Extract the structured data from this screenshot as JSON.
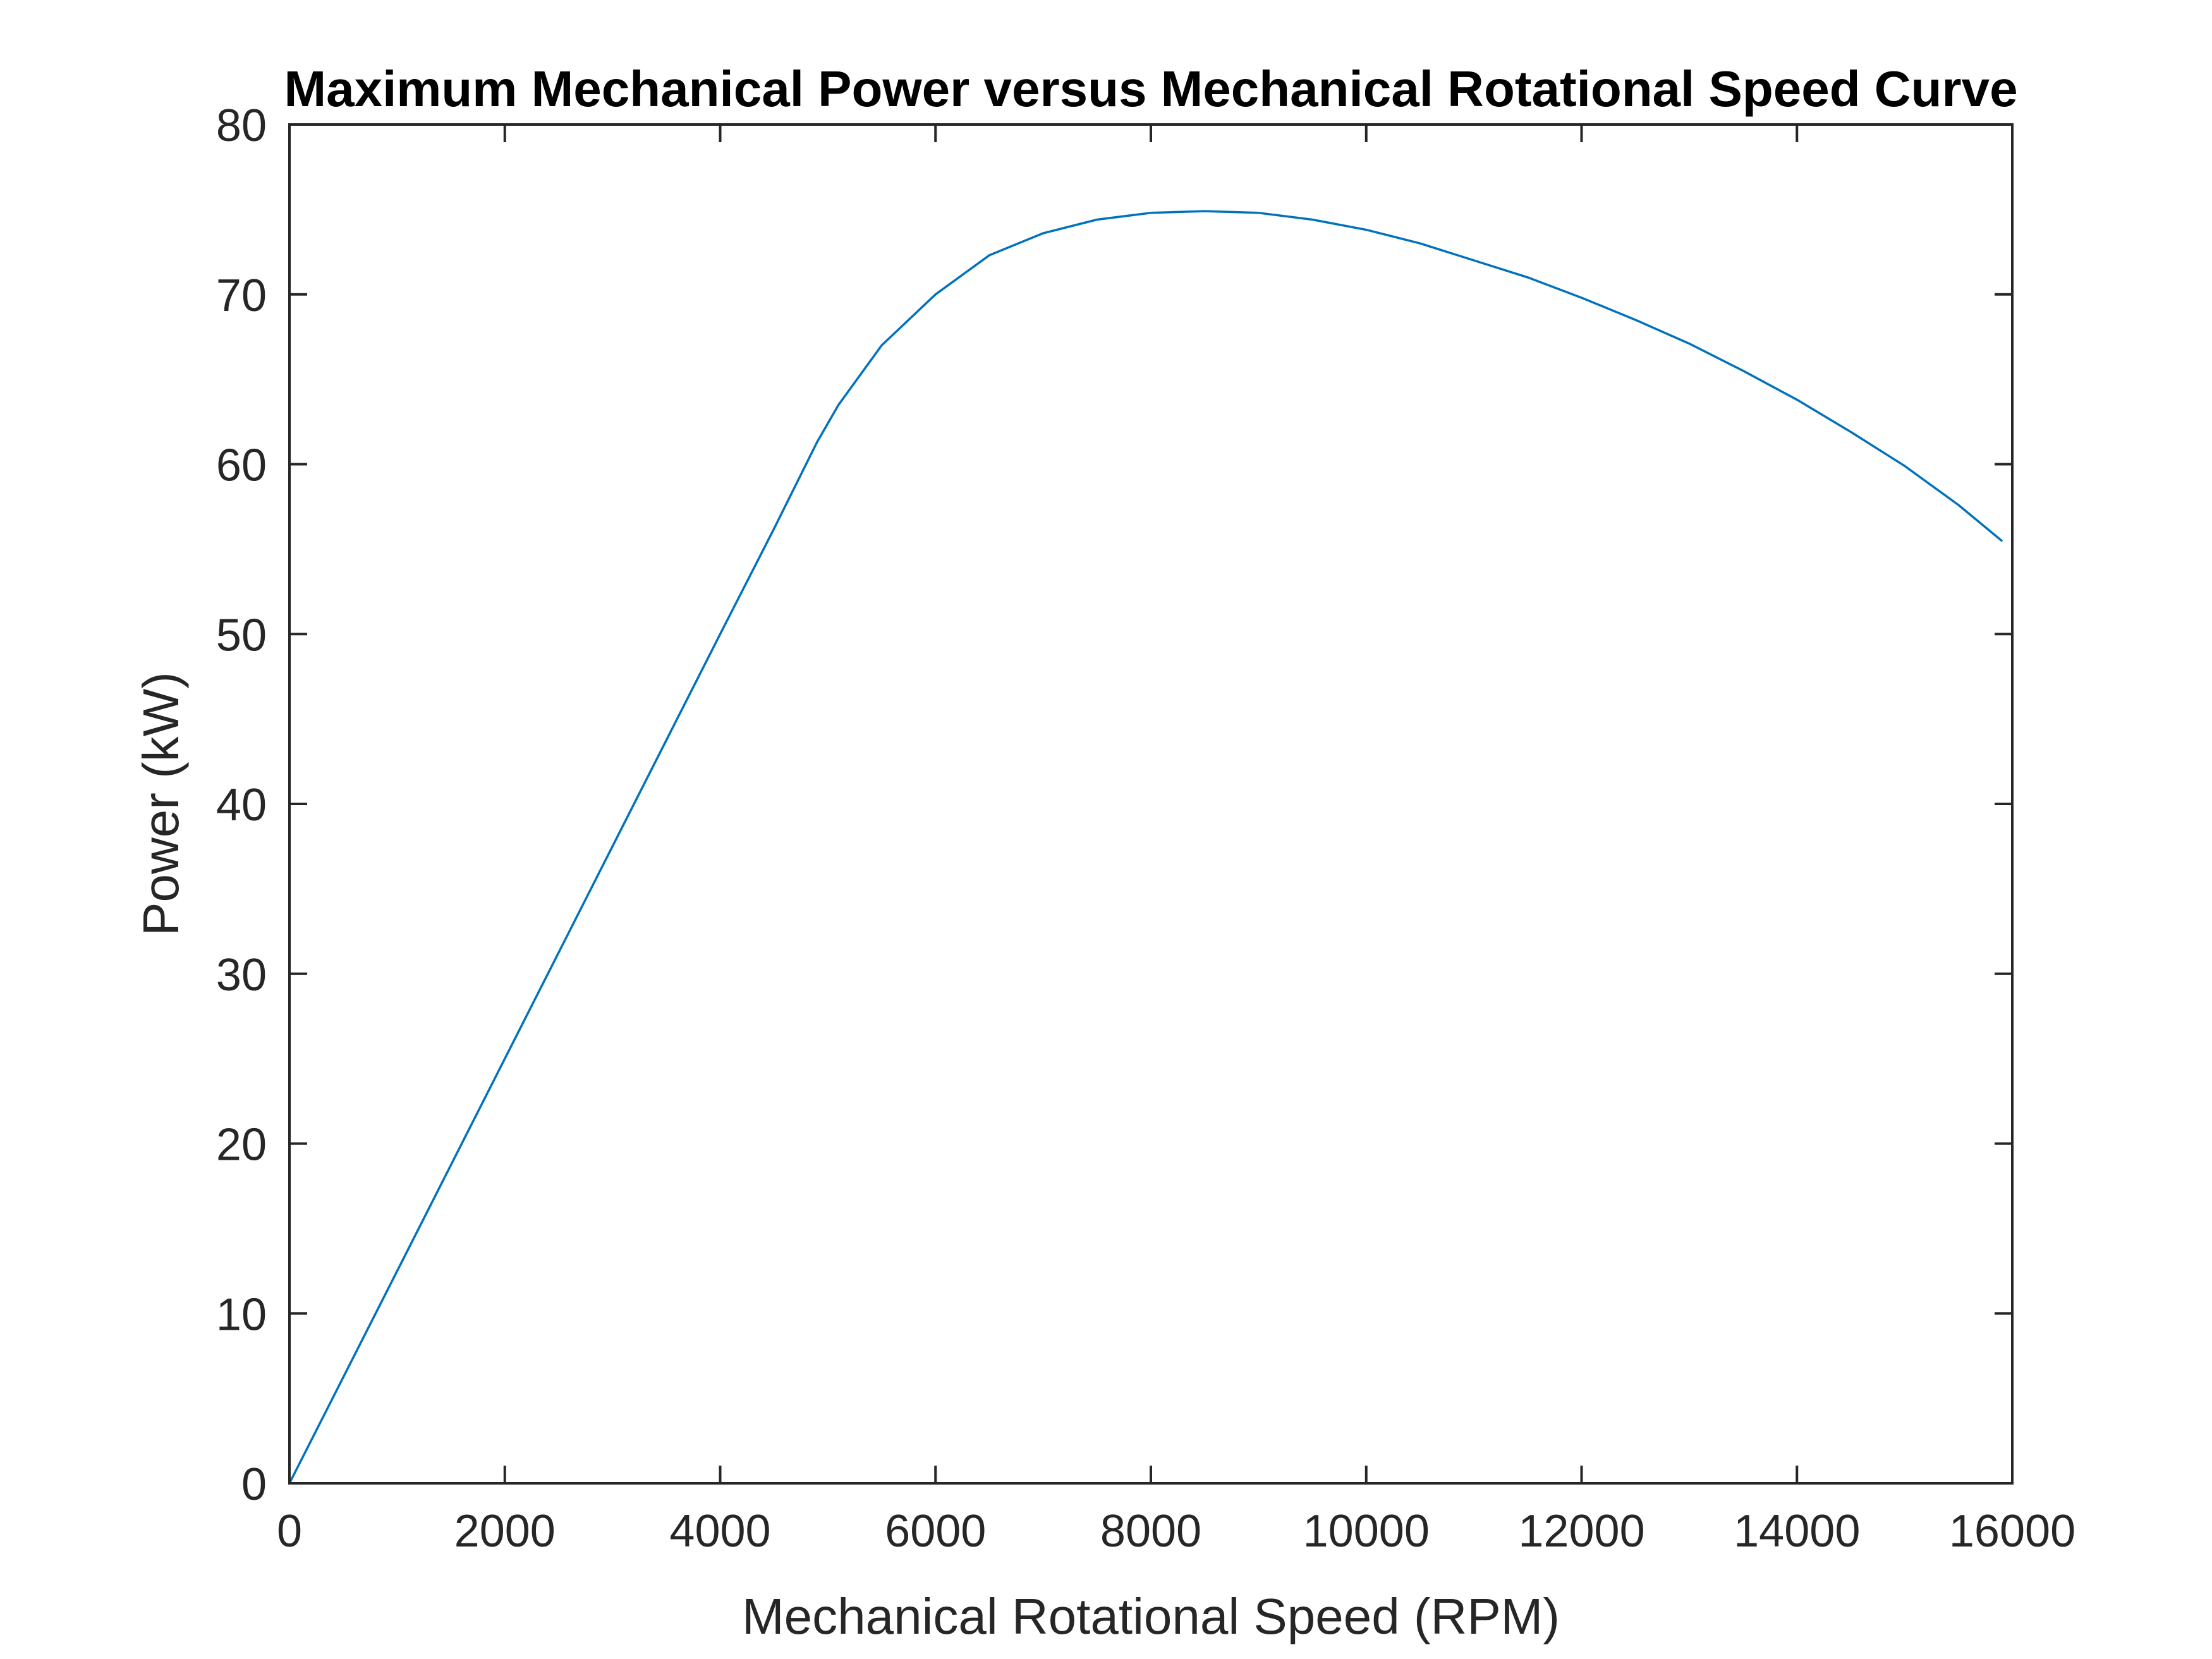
{
  "chart_data": {
    "type": "line",
    "title": "Maximum Mechanical Power versus Mechanical Rotational Speed Curve",
    "xlabel": "Mechanical Rotational Speed (RPM)",
    "ylabel": "Power (kW)",
    "xlim": [
      0,
      16000
    ],
    "ylim": [
      0,
      80
    ],
    "xticks": [
      0,
      2000,
      4000,
      6000,
      8000,
      10000,
      12000,
      14000,
      16000
    ],
    "yticks": [
      0,
      10,
      20,
      30,
      40,
      50,
      60,
      70,
      80
    ],
    "grid": false,
    "legend": "none",
    "box": true,
    "series": [
      {
        "color": "#0072bd",
        "x": [
          0,
          1000,
          2000,
          3000,
          4000,
          4500,
          4900,
          5100,
          5500,
          6000,
          6500,
          7000,
          7500,
          8000,
          8500,
          9000,
          9500,
          10000,
          10500,
          11000,
          11500,
          12000,
          12500,
          13000,
          13500,
          14000,
          14500,
          15000,
          15500,
          15900
        ],
        "y": [
          0,
          12.5,
          25.0,
          37.5,
          50.0,
          56.2,
          61.3,
          63.5,
          67.0,
          70.0,
          72.3,
          73.6,
          74.4,
          74.8,
          74.9,
          74.8,
          74.4,
          73.8,
          73.0,
          72.0,
          71.0,
          69.8,
          68.5,
          67.1,
          65.5,
          63.8,
          61.9,
          59.9,
          57.6,
          55.5
        ]
      }
    ]
  }
}
